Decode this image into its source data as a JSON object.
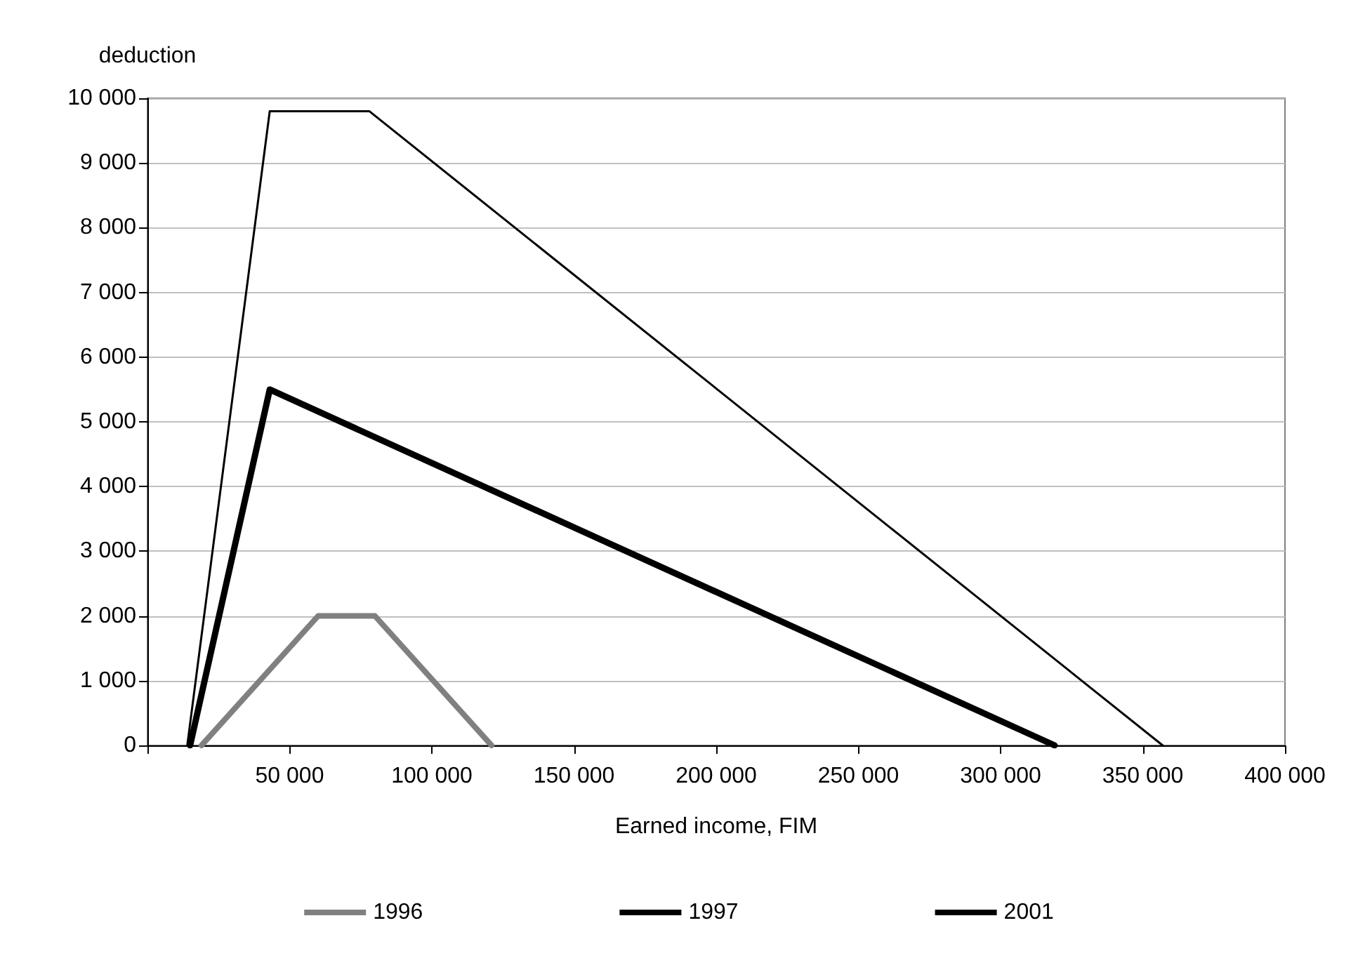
{
  "chart_data": {
    "type": "line",
    "xlabel": "Earned income, FIM",
    "ylabel": "deduction",
    "xlim": [
      0,
      400000
    ],
    "ylim": [
      0,
      10000
    ],
    "xticks": [
      {
        "value": 0,
        "label": null
      },
      {
        "value": 50000,
        "label": "50 000"
      },
      {
        "value": 100000,
        "label": "100 000"
      },
      {
        "value": 150000,
        "label": "150 000"
      },
      {
        "value": 200000,
        "label": "200 000"
      },
      {
        "value": 250000,
        "label": "250 000"
      },
      {
        "value": 300000,
        "label": "300 000"
      },
      {
        "value": 350000,
        "label": "350 000"
      },
      {
        "value": 400000,
        "label": "400 000"
      }
    ],
    "yticks": [
      0,
      {
        "value": 1000,
        "label": "1 000"
      },
      {
        "value": 2000,
        "label": "2 000"
      },
      {
        "value": 3000,
        "label": "3 000"
      },
      {
        "value": 4000,
        "label": "4 000"
      },
      {
        "value": 5000,
        "label": "5 000"
      },
      {
        "value": 6000,
        "label": "6 000"
      },
      {
        "value": 7000,
        "label": "7 000"
      },
      {
        "value": 8000,
        "label": "8 000"
      },
      {
        "value": 9000,
        "label": "9 000"
      },
      {
        "value": 10000,
        "label": "10 000"
      }
    ],
    "grid": "y",
    "legend": "bottom",
    "marker": "none",
    "line_style": "solid",
    "series": [
      {
        "name": "1996",
        "color": "#808080",
        "x": [
          19000,
          60000,
          80000,
          121000
        ],
        "values": [
          0,
          2000,
          2000,
          0
        ]
      },
      {
        "name": "1997",
        "color": "#000000",
        "x": [
          15000,
          43000,
          319000
        ],
        "values": [
          0,
          5500,
          0
        ]
      },
      {
        "name": "2001",
        "color": "#000000",
        "x": [
          14000,
          43000,
          78000,
          357000
        ],
        "values": [
          0,
          9800,
          9800,
          0
        ]
      }
    ]
  }
}
